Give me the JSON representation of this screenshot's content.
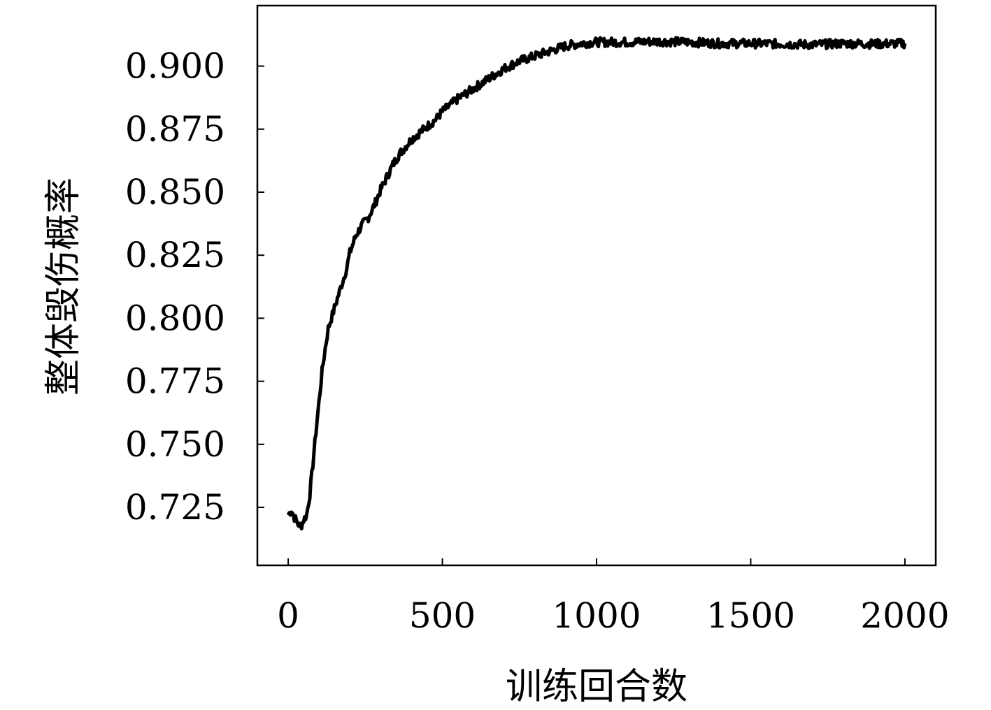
{
  "chart_data": {
    "type": "line",
    "title": "",
    "xlabel": "训练回合数",
    "ylabel": "整体毁伤概率",
    "xlim": [
      -100,
      2100
    ],
    "ylim": [
      0.702,
      0.924
    ],
    "x_ticks": [
      0,
      500,
      1000,
      1500,
      2000
    ],
    "x_tick_labels": [
      "0",
      "500",
      "1000",
      "1500",
      "2000"
    ],
    "y_ticks": [
      0.725,
      0.75,
      0.775,
      0.8,
      0.825,
      0.85,
      0.875,
      0.9
    ],
    "y_tick_labels": [
      "0.725",
      "0.750",
      "0.775",
      "0.800",
      "0.825",
      "0.850",
      "0.875",
      "0.900"
    ],
    "grid": false,
    "legend": "none",
    "line_color": "#000000",
    "series": [
      {
        "x": [
          0,
          10,
          20,
          30,
          40,
          50,
          60,
          70,
          80,
          90,
          100,
          110,
          120,
          130,
          140,
          150,
          160,
          170,
          180,
          190,
          200,
          220,
          240,
          260,
          280,
          300,
          320,
          340,
          360,
          380,
          400,
          420,
          440,
          460,
          480,
          500,
          550,
          600,
          650,
          700,
          750,
          800,
          850,
          900,
          950,
          1000,
          1100,
          1200,
          1300,
          1400,
          1500,
          1600,
          1700,
          1800,
          1900,
          2000
        ],
        "values": [
          0.722,
          0.724,
          0.721,
          0.719,
          0.717,
          0.72,
          0.722,
          0.73,
          0.742,
          0.755,
          0.767,
          0.779,
          0.788,
          0.796,
          0.8,
          0.804,
          0.808,
          0.812,
          0.816,
          0.82,
          0.826,
          0.833,
          0.837,
          0.84,
          0.845,
          0.851,
          0.856,
          0.861,
          0.865,
          0.868,
          0.871,
          0.873,
          0.875,
          0.877,
          0.879,
          0.882,
          0.887,
          0.891,
          0.895,
          0.899,
          0.902,
          0.904,
          0.906,
          0.908,
          0.909,
          0.9095,
          0.9095,
          0.9098,
          0.9095,
          0.909,
          0.909,
          0.9088,
          0.9085,
          0.909,
          0.9088,
          0.909
        ]
      }
    ]
  }
}
